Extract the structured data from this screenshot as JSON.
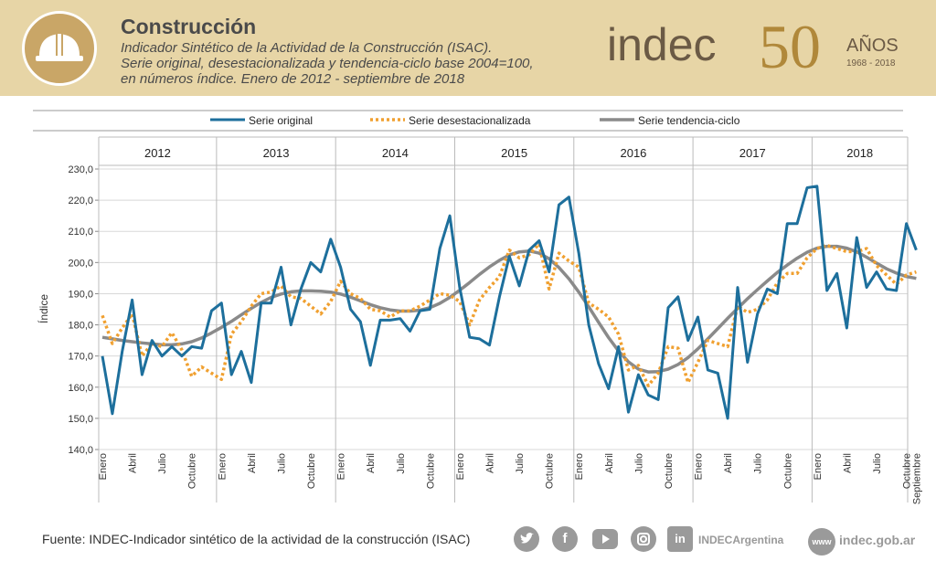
{
  "header": {
    "title": "Construcción",
    "subtitle_lines": [
      "Indicador Sintético de la Actividad de la Construcción (ISAC).",
      "Serie original, desestacionalizada y tendencia-ciclo base 2004=100,",
      "en números índice. Enero de 2012 - septiembre de 2018"
    ],
    "logo_text": "indec",
    "anniversary_number": "50",
    "anniversary_word": "AÑOS",
    "anniversary_years": "1968 - 2018",
    "icon": "construction-helmet-icon"
  },
  "footer": {
    "source_label": "Fuente",
    "source_text": ": INDEC-Indicador sintético de la actividad de la construcción (ISAC)",
    "social_icons": [
      "twitter-icon",
      "facebook-icon",
      "youtube-icon",
      "instagram-icon",
      "linkedin-icon"
    ],
    "handle": "INDECArgentina",
    "www_icon": "www",
    "website": "indec.gob.ar"
  },
  "colors": {
    "header_bg": "#e7d5a6",
    "original": "#1d6f9c",
    "desestacionalizada": "#f0a030",
    "tendencia": "#8a8a8a",
    "gold": "#b0883a"
  },
  "chart_data": {
    "type": "line",
    "ylabel": "Índice",
    "ylim": [
      140,
      230
    ],
    "yticks": [
      140,
      150,
      160,
      170,
      180,
      190,
      200,
      210,
      220,
      230
    ],
    "ytick_labels": [
      "140,0",
      "150,0",
      "160,0",
      "170,0",
      "180,0",
      "190,0",
      "200,0",
      "210,0",
      "220,0",
      "230,0"
    ],
    "grid": "horizontal",
    "legend_position": "top",
    "years": [
      "2012",
      "2013",
      "2014",
      "2015",
      "2016",
      "2017",
      "2018"
    ],
    "month_tick_labels": [
      "Enero",
      "Abril",
      "Julio",
      "Octubre"
    ],
    "last_tick_label": "Septiembre",
    "x_start": "2012-01",
    "x_end": "2018-09",
    "series": [
      {
        "name": "Serie original",
        "style": "solid",
        "values": [
          170.0,
          151.5,
          171.5,
          188.0,
          164.0,
          175.0,
          170.0,
          173.0,
          170.0,
          173.0,
          172.5,
          184.5,
          187.0,
          164.0,
          171.5,
          161.5,
          187.0,
          187.0,
          198.5,
          180.0,
          191.5,
          200.0,
          197.0,
          207.5,
          198.5,
          185.0,
          181.0,
          167.0,
          181.5,
          181.5,
          182.0,
          178.0,
          184.5,
          185.0,
          204.5,
          215.0,
          192.0,
          176.0,
          175.5,
          173.5,
          189.0,
          202.0,
          192.5,
          204.0,
          207.0,
          197.0,
          218.5,
          221.0,
          203.0,
          180.0,
          167.5,
          159.5,
          173.0,
          152.0,
          164.0,
          157.5,
          156.0,
          185.5,
          189.0,
          175.0,
          182.5,
          165.5,
          164.5,
          150.0,
          192.0,
          168.0,
          183.5,
          191.5,
          190.0,
          212.5,
          212.5,
          224.0,
          224.5,
          191.0,
          196.5,
          179.0,
          208.0,
          192.0,
          197.0,
          191.5,
          191.0,
          212.5,
          204.0
        ]
      },
      {
        "name": "Serie desestacionalizada",
        "style": "dotted",
        "values": [
          183.0,
          174.0,
          179.0,
          183.5,
          170.0,
          174.0,
          173.0,
          177.5,
          172.0,
          163.5,
          166.5,
          164.5,
          162.5,
          177.0,
          181.0,
          186.0,
          190.0,
          190.5,
          192.5,
          189.0,
          188.5,
          186.0,
          183.5,
          187.5,
          194.0,
          190.0,
          188.5,
          185.0,
          184.5,
          182.5,
          184.5,
          184.5,
          186.0,
          188.0,
          190.0,
          189.5,
          187.5,
          180.0,
          188.0,
          192.0,
          195.5,
          204.0,
          201.5,
          202.5,
          206.0,
          191.5,
          203.0,
          200.5,
          198.5,
          187.0,
          185.0,
          182.5,
          177.0,
          165.5,
          167.0,
          160.5,
          164.5,
          173.0,
          172.5,
          161.5,
          168.0,
          175.0,
          174.0,
          173.0,
          186.0,
          184.0,
          185.0,
          188.0,
          193.5,
          196.5,
          196.5,
          201.5,
          204.5,
          205.5,
          204.5,
          203.5,
          203.5,
          204.5,
          199.0,
          196.0,
          193.0,
          196.0,
          197.0
        ]
      },
      {
        "name": "Serie tendencia-ciclo",
        "style": "solid",
        "values": [
          176.0,
          175.5,
          175.0,
          174.6,
          174.2,
          173.9,
          173.6,
          173.6,
          173.9,
          174.6,
          175.8,
          177.4,
          179.2,
          181.1,
          183.2,
          185.3,
          187.2,
          188.8,
          189.9,
          190.6,
          190.9,
          190.9,
          190.8,
          190.5,
          189.9,
          188.9,
          187.7,
          186.5,
          185.5,
          184.8,
          184.4,
          184.4,
          184.7,
          185.5,
          186.9,
          188.8,
          191.1,
          193.6,
          196.2,
          198.6,
          200.7,
          202.4,
          203.4,
          203.7,
          203.0,
          201.2,
          198.4,
          194.8,
          190.5,
          185.8,
          180.8,
          175.9,
          171.6,
          168.1,
          165.8,
          164.9,
          165.0,
          165.8,
          167.3,
          169.5,
          172.3,
          175.5,
          178.8,
          182.1,
          185.3,
          188.4,
          191.3,
          194.1,
          196.8,
          199.2,
          201.4,
          203.3,
          204.6,
          205.2,
          205.2,
          204.6,
          203.4,
          201.7,
          199.8,
          198.0,
          196.6,
          195.5,
          194.9
        ]
      }
    ]
  }
}
